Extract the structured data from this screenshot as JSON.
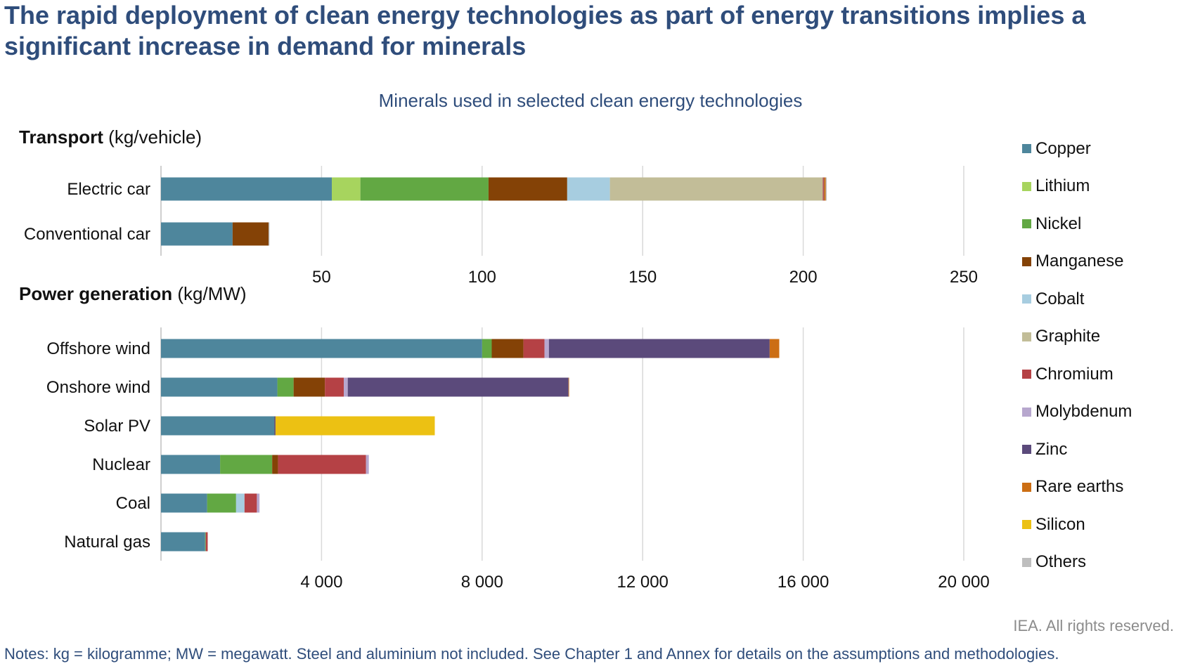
{
  "headline": "The rapid deployment of clean energy technologies as part of energy transitions implies a significant increase in demand for minerals",
  "credit": "IEA. All rights reserved.",
  "notes": "Notes: kg = kilogramme; MW = megawatt. Steel and aluminium not included. See Chapter 1 and Annex for details on the assumptions and methodologies.",
  "colors": {
    "Copper": "#4e869c",
    "Lithium": "#a7d45e",
    "Nickel": "#62a843",
    "Manganese": "#844206",
    "Cobalt": "#a7cde0",
    "Graphite": "#c2bd98",
    "Chromium": "#b54145",
    "Molybdenum": "#b7a7ce",
    "Zinc": "#5b4a7b",
    "Rare earths": "#cc6e14",
    "Silicon": "#ecc113",
    "Others": "#bebebe"
  },
  "chart_data": [
    {
      "type": "bar",
      "orientation": "horizontal",
      "stacked": true,
      "title": "Minerals used in selected clean energy technologies",
      "section_title": "Transport",
      "unit": "(kg/vehicle)",
      "categories": [
        "Electric car",
        "Conventional car"
      ],
      "xlim": [
        0,
        250
      ],
      "xticks": [
        "50",
        "100",
        "150",
        "200",
        "250"
      ],
      "grid": true,
      "legend": "right",
      "series": [
        {
          "name": "Copper",
          "values": [
            53.2,
            22.3
          ]
        },
        {
          "name": "Lithium",
          "values": [
            8.9,
            0
          ]
        },
        {
          "name": "Nickel",
          "values": [
            39.9,
            0
          ]
        },
        {
          "name": "Manganese",
          "values": [
            24.5,
            11.2
          ]
        },
        {
          "name": "Cobalt",
          "values": [
            13.3,
            0
          ]
        },
        {
          "name": "Graphite",
          "values": [
            66.3,
            0
          ]
        },
        {
          "name": "Chromium",
          "values": [
            0.3,
            0
          ]
        },
        {
          "name": "Molybdenum",
          "values": [
            0,
            0
          ]
        },
        {
          "name": "Zinc",
          "values": [
            0.1,
            0
          ]
        },
        {
          "name": "Rare earths",
          "values": [
            0.5,
            0
          ]
        },
        {
          "name": "Silicon",
          "values": [
            0,
            0
          ]
        },
        {
          "name": "Others",
          "values": [
            0.3,
            0.3
          ]
        }
      ]
    },
    {
      "type": "bar",
      "orientation": "horizontal",
      "stacked": true,
      "section_title": "Power generation",
      "unit": "(kg/MW)",
      "categories": [
        "Offshore wind",
        "Onshore wind",
        "Solar PV",
        "Nuclear",
        "Coal",
        "Natural gas"
      ],
      "xlim": [
        0,
        20000
      ],
      "xticks": [
        "4 000",
        "8 000",
        "12 000",
        "16 000",
        "20 000"
      ],
      "grid": true,
      "legend": "right",
      "series": [
        {
          "name": "Copper",
          "values": [
            8000,
            2900,
            2822,
            1473,
            1150,
            1100
          ]
        },
        {
          "name": "Lithium",
          "values": [
            0,
            0,
            0,
            0,
            0,
            0
          ]
        },
        {
          "name": "Nickel",
          "values": [
            240,
            404,
            1,
            1297,
            721,
            16
          ]
        },
        {
          "name": "Manganese",
          "values": [
            790,
            780,
            0,
            148,
            0,
            0
          ]
        },
        {
          "name": "Cobalt",
          "values": [
            0,
            0,
            0,
            0,
            210,
            0
          ]
        },
        {
          "name": "Graphite",
          "values": [
            0,
            0,
            0,
            0,
            0,
            0
          ]
        },
        {
          "name": "Chromium",
          "values": [
            525,
            470,
            0,
            2190,
            308,
            48
          ]
        },
        {
          "name": "Molybdenum",
          "values": [
            109,
            99,
            0,
            70,
            66,
            0
          ]
        },
        {
          "name": "Zinc",
          "values": [
            5500,
            5500,
            30,
            0,
            0,
            0
          ]
        },
        {
          "name": "Rare earths",
          "values": [
            239,
            14,
            0,
            0,
            0,
            0
          ]
        },
        {
          "name": "Silicon",
          "values": [
            0,
            0,
            3968,
            0,
            0,
            0
          ]
        },
        {
          "name": "Others",
          "values": [
            0,
            0,
            0,
            0,
            0,
            0
          ]
        }
      ]
    }
  ]
}
